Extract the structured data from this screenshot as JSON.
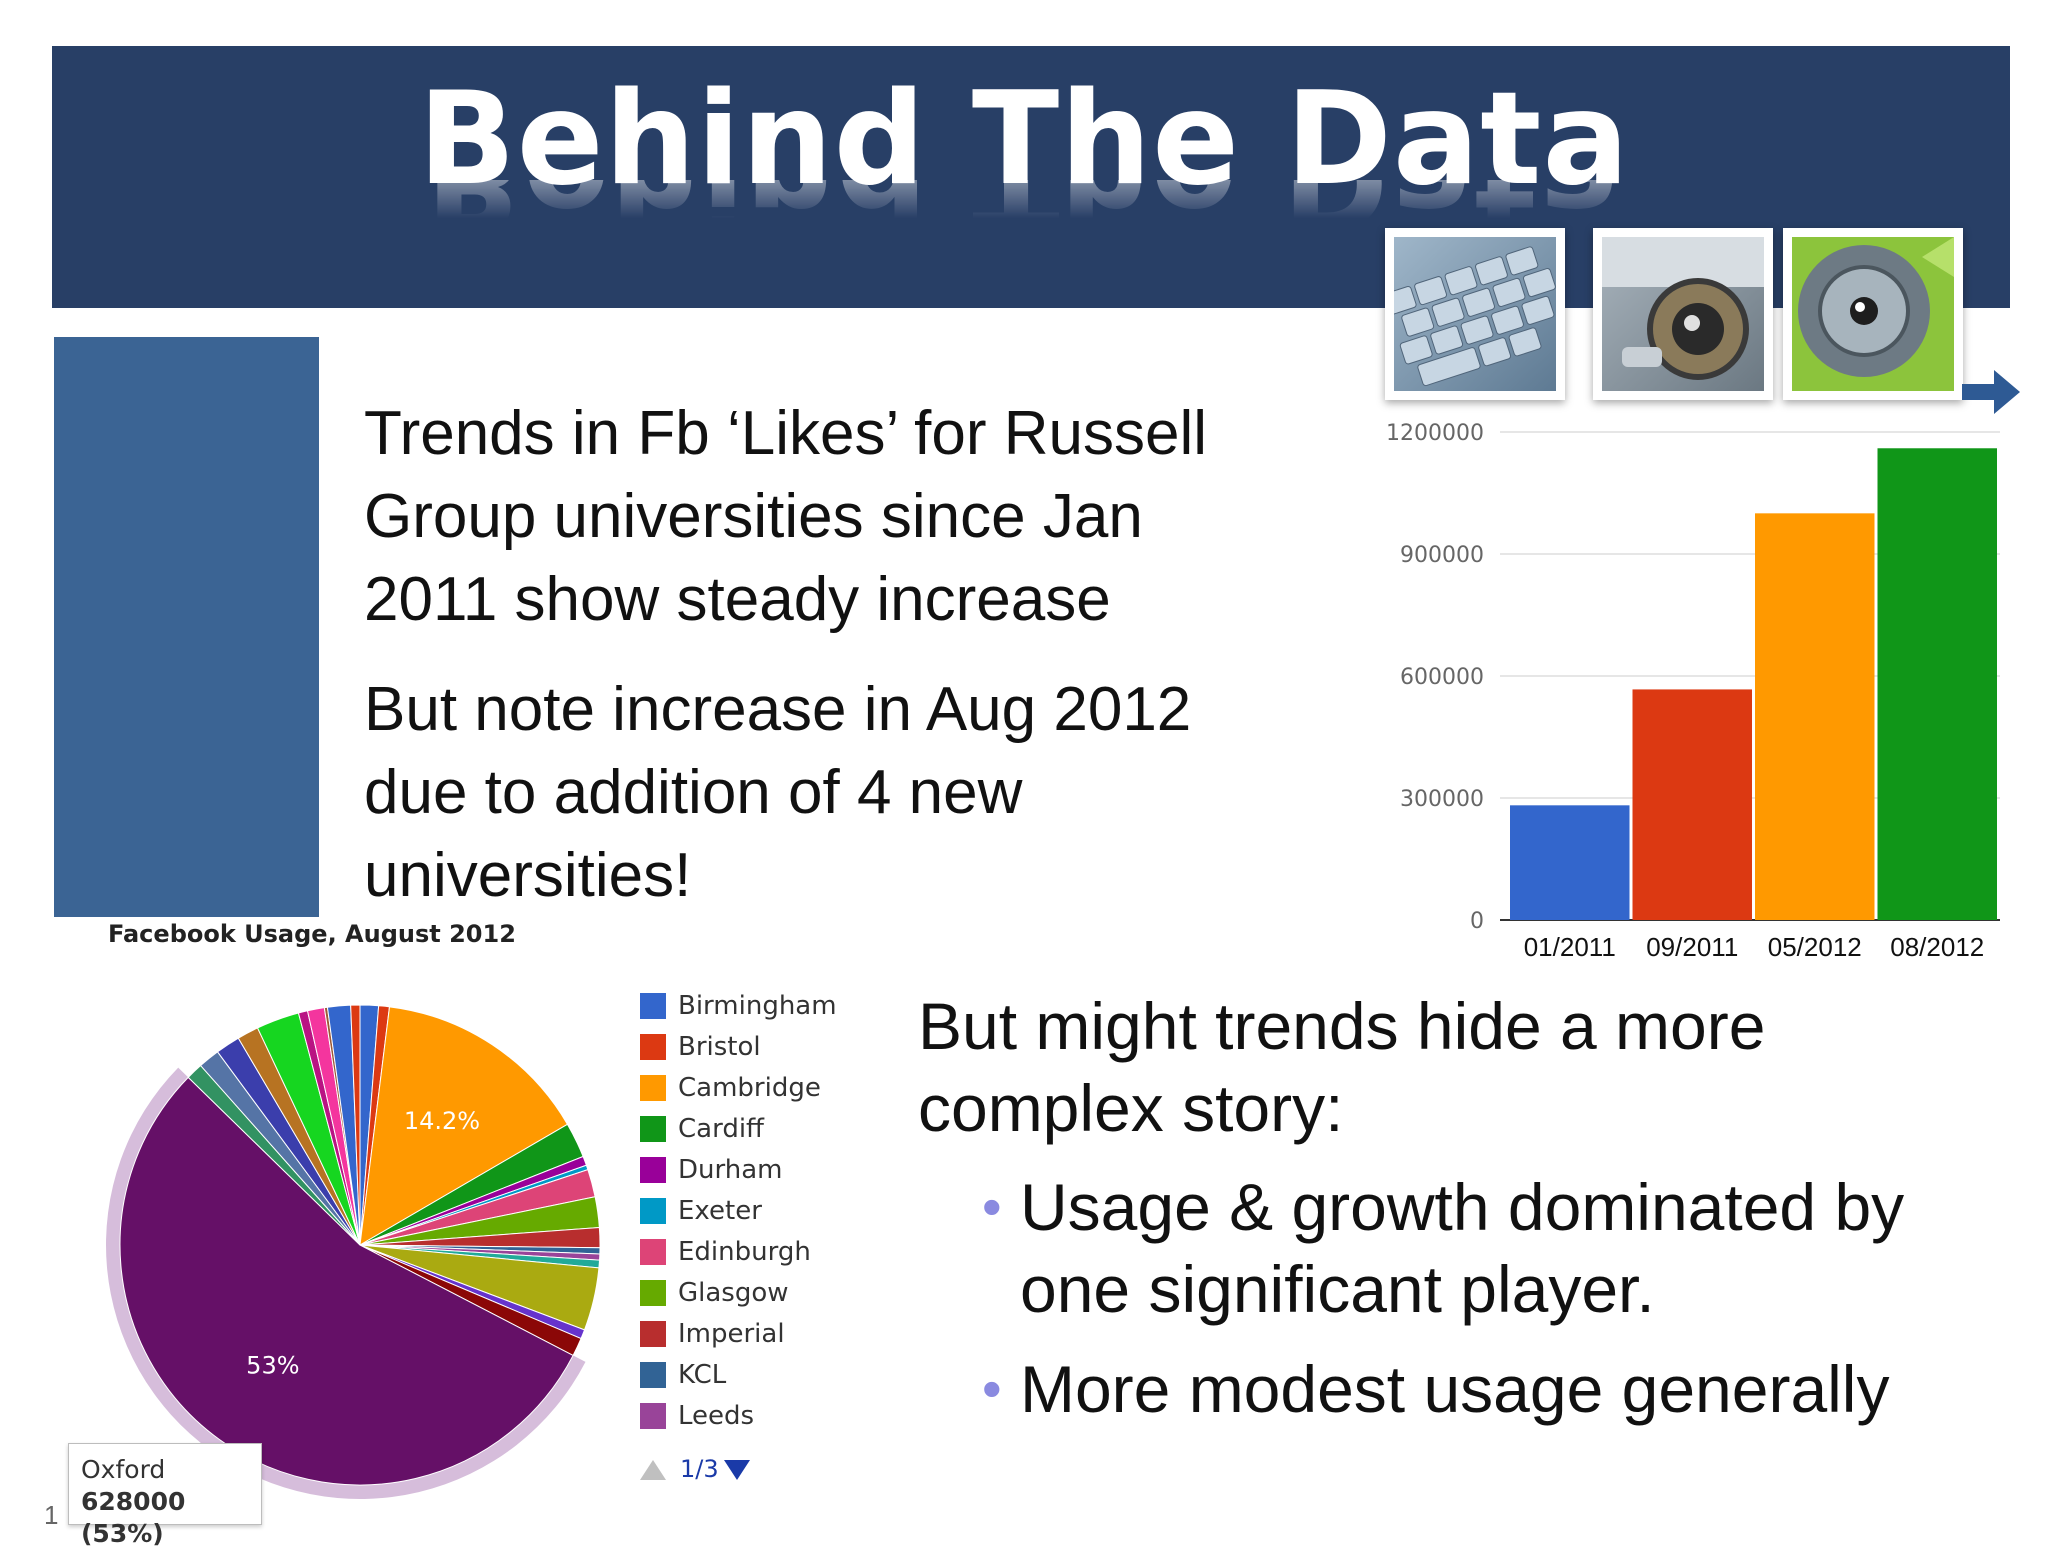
{
  "slide": {
    "title": "Behind The Data",
    "para1": "Trends in Fb ‘Likes’ for Russell\nGroup universities since Jan\n2011 show steady increase",
    "para2": "But note increase in Aug 2012\ndue to addition of 4 new\nuniversities!",
    "story": "But might trends hide a more\ncomplex story:",
    "bullets": [
      "Usage & growth dominated by\none significant player.",
      "More modest usage generally"
    ],
    "slide_number": "1"
  },
  "chart_data": [
    {
      "type": "bar",
      "categories": [
        "01/2011",
        "09/2011",
        "05/2012",
        "08/2012"
      ],
      "values": [
        282000,
        567000,
        1000000,
        1160000
      ],
      "colors": [
        "#3366cc",
        "#dc3912",
        "#ff9900",
        "#109618"
      ],
      "ylim": [
        0,
        1200000
      ],
      "yticks": [
        0,
        300000,
        600000,
        900000,
        1200000
      ],
      "grid": true,
      "title": "",
      "xlabel": "",
      "ylabel": ""
    },
    {
      "type": "pie",
      "title": "Facebook Usage, August 2012",
      "legend_page": "1/3",
      "legend_position": "right",
      "slices": [
        {
          "label": "Birmingham",
          "value": 1.2,
          "color": "#3366cc"
        },
        {
          "label": "Bristol",
          "value": 0.7,
          "color": "#dc3912"
        },
        {
          "label": "Cambridge",
          "value": 14.2,
          "color": "#ff9900"
        },
        {
          "label": "Cardiff",
          "value": 2.3,
          "color": "#109618"
        },
        {
          "label": "Durham",
          "value": 0.6,
          "color": "#990099"
        },
        {
          "label": "Exeter",
          "value": 0.3,
          "color": "#0099c6"
        },
        {
          "label": "Edinburgh",
          "value": 1.8,
          "color": "#dd4477"
        },
        {
          "label": "Glasgow",
          "value": 2.0,
          "color": "#66aa00"
        },
        {
          "label": "Imperial",
          "value": 1.3,
          "color": "#b82e2e"
        },
        {
          "label": "KCL",
          "value": 0.4,
          "color": "#316395"
        },
        {
          "label": "Leeds",
          "value": 0.4,
          "color": "#994499"
        },
        {
          "label": "",
          "value": 0.5,
          "color": "#22aa99"
        },
        {
          "label": "",
          "value": 4.1,
          "color": "#aaaa11"
        },
        {
          "label": "",
          "value": 0.6,
          "color": "#6633cc"
        },
        {
          "label": "",
          "value": 1.2,
          "color": "#8b0707"
        },
        {
          "label": "Oxford",
          "value": 53.0,
          "color": "#651067"
        },
        {
          "label": "",
          "value": 1.1,
          "color": "#329262"
        },
        {
          "label": "",
          "value": 1.4,
          "color": "#5574a6"
        },
        {
          "label": "",
          "value": 1.6,
          "color": "#3b3eac"
        },
        {
          "label": "",
          "value": 1.4,
          "color": "#b77322"
        },
        {
          "label": "",
          "value": 2.8,
          "color": "#16d620"
        },
        {
          "label": "",
          "value": 0.6,
          "color": "#b91383"
        },
        {
          "label": "",
          "value": 1.1,
          "color": "#f4359e"
        },
        {
          "label": "",
          "value": 0.2,
          "color": "#9c5935"
        },
        {
          "label": "",
          "value": 1.5,
          "color": "#3366cc"
        },
        {
          "label": "",
          "value": 0.6,
          "color": "#dc3912"
        }
      ],
      "slice_labels": [
        {
          "slice": "Cambridge",
          "text": "14.2%"
        },
        {
          "slice": "Oxford",
          "text": "53%"
        }
      ],
      "tooltip": {
        "label": "Oxford",
        "value": "628000 (53%)"
      }
    }
  ]
}
